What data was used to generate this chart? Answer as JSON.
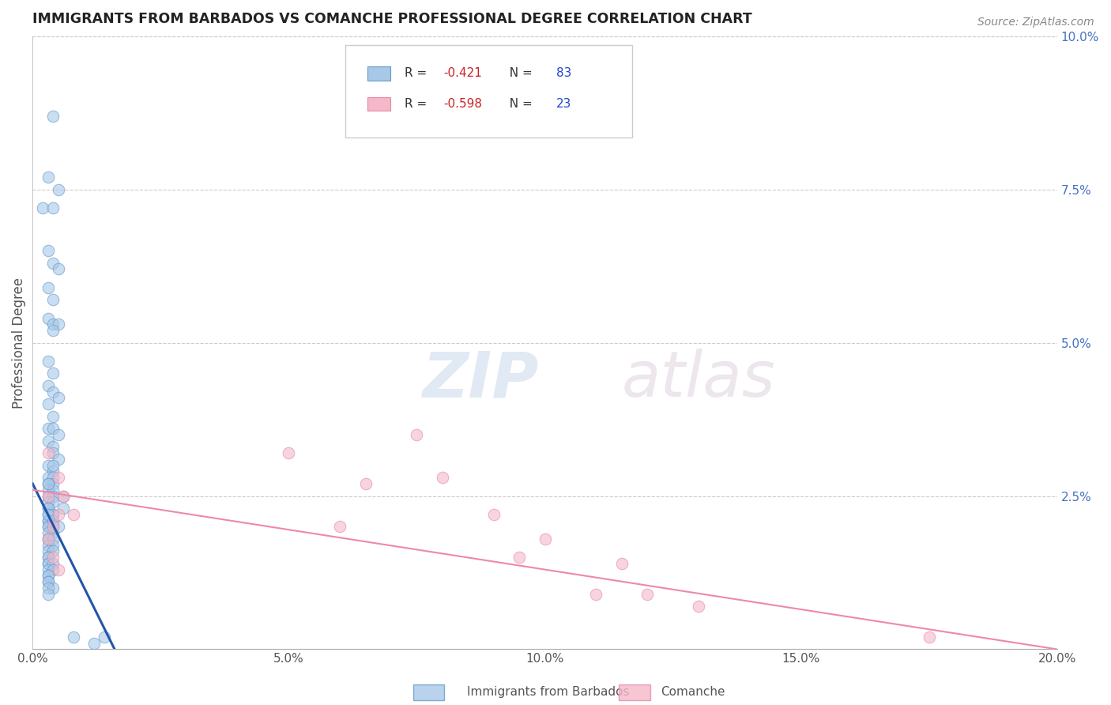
{
  "title": "IMMIGRANTS FROM BARBADOS VS COMANCHE PROFESSIONAL DEGREE CORRELATION CHART",
  "source": "Source: ZipAtlas.com",
  "ylabel": "Professional Degree",
  "watermark_zip": "ZIP",
  "watermark_atlas": "atlas",
  "legend1_label": "Immigrants from Barbados",
  "legend2_label": "Comanche",
  "r1": -0.421,
  "n1": 83,
  "r2": -0.598,
  "n2": 23,
  "color1": "#a8c8e8",
  "color2": "#f4b8c8",
  "edge_color1": "#6699cc",
  "edge_color2": "#e888aa",
  "line_color1": "#2255aa",
  "line_color2": "#ee88aa",
  "r_color": "#cc0000",
  "n_color": "#0000cc",
  "xlim": [
    0.0,
    0.2
  ],
  "ylim": [
    0.0,
    0.1
  ],
  "xticks": [
    0.0,
    0.05,
    0.1,
    0.15,
    0.2
  ],
  "xtick_labels": [
    "0.0%",
    "5.0%",
    "10.0%",
    "15.0%",
    "20.0%"
  ],
  "yticks_right": [
    0.0,
    0.025,
    0.05,
    0.075,
    0.1
  ],
  "ytick_labels_right": [
    "",
    "2.5%",
    "5.0%",
    "7.5%",
    "10.0%"
  ],
  "blue_x": [
    0.004,
    0.003,
    0.002,
    0.005,
    0.004,
    0.003,
    0.004,
    0.005,
    0.003,
    0.004,
    0.003,
    0.004,
    0.005,
    0.004,
    0.003,
    0.004,
    0.003,
    0.004,
    0.005,
    0.003,
    0.004,
    0.003,
    0.004,
    0.005,
    0.003,
    0.004,
    0.004,
    0.005,
    0.003,
    0.004,
    0.003,
    0.004,
    0.004,
    0.003,
    0.003,
    0.004,
    0.004,
    0.003,
    0.003,
    0.004,
    0.003,
    0.003,
    0.004,
    0.003,
    0.004,
    0.003,
    0.003,
    0.004,
    0.003,
    0.003,
    0.004,
    0.003,
    0.003,
    0.003,
    0.004,
    0.003,
    0.004,
    0.003,
    0.004,
    0.003,
    0.003,
    0.003,
    0.003,
    0.004,
    0.003,
    0.004,
    0.003,
    0.003,
    0.003,
    0.003,
    0.004,
    0.003,
    0.003,
    0.014,
    0.012,
    0.008,
    0.006,
    0.006,
    0.003,
    0.004,
    0.005,
    0.003,
    0.004
  ],
  "blue_y": [
    0.087,
    0.077,
    0.072,
    0.075,
    0.072,
    0.065,
    0.063,
    0.062,
    0.059,
    0.057,
    0.054,
    0.053,
    0.053,
    0.052,
    0.047,
    0.045,
    0.043,
    0.042,
    0.041,
    0.04,
    0.038,
    0.036,
    0.036,
    0.035,
    0.034,
    0.033,
    0.032,
    0.031,
    0.03,
    0.029,
    0.028,
    0.028,
    0.027,
    0.027,
    0.026,
    0.026,
    0.025,
    0.025,
    0.024,
    0.024,
    0.023,
    0.023,
    0.022,
    0.022,
    0.022,
    0.021,
    0.021,
    0.02,
    0.02,
    0.02,
    0.019,
    0.019,
    0.018,
    0.018,
    0.018,
    0.017,
    0.017,
    0.016,
    0.016,
    0.015,
    0.015,
    0.014,
    0.014,
    0.014,
    0.013,
    0.013,
    0.012,
    0.012,
    0.011,
    0.011,
    0.01,
    0.01,
    0.009,
    0.002,
    0.001,
    0.002,
    0.025,
    0.023,
    0.022,
    0.021,
    0.02,
    0.027,
    0.03
  ],
  "pink_x": [
    0.003,
    0.005,
    0.003,
    0.005,
    0.004,
    0.003,
    0.004,
    0.005,
    0.05,
    0.065,
    0.06,
    0.09,
    0.075,
    0.08,
    0.1,
    0.11,
    0.095,
    0.12,
    0.115,
    0.13,
    0.175,
    0.006,
    0.008
  ],
  "pink_y": [
    0.032,
    0.028,
    0.025,
    0.022,
    0.02,
    0.018,
    0.015,
    0.013,
    0.032,
    0.027,
    0.02,
    0.022,
    0.035,
    0.028,
    0.018,
    0.009,
    0.015,
    0.009,
    0.014,
    0.007,
    0.002,
    0.025,
    0.022
  ],
  "blue_line_x": [
    0.0,
    0.016
  ],
  "blue_line_y": [
    0.027,
    0.0
  ],
  "pink_line_x": [
    0.0,
    0.2
  ],
  "pink_line_y": [
    0.026,
    0.0
  ]
}
